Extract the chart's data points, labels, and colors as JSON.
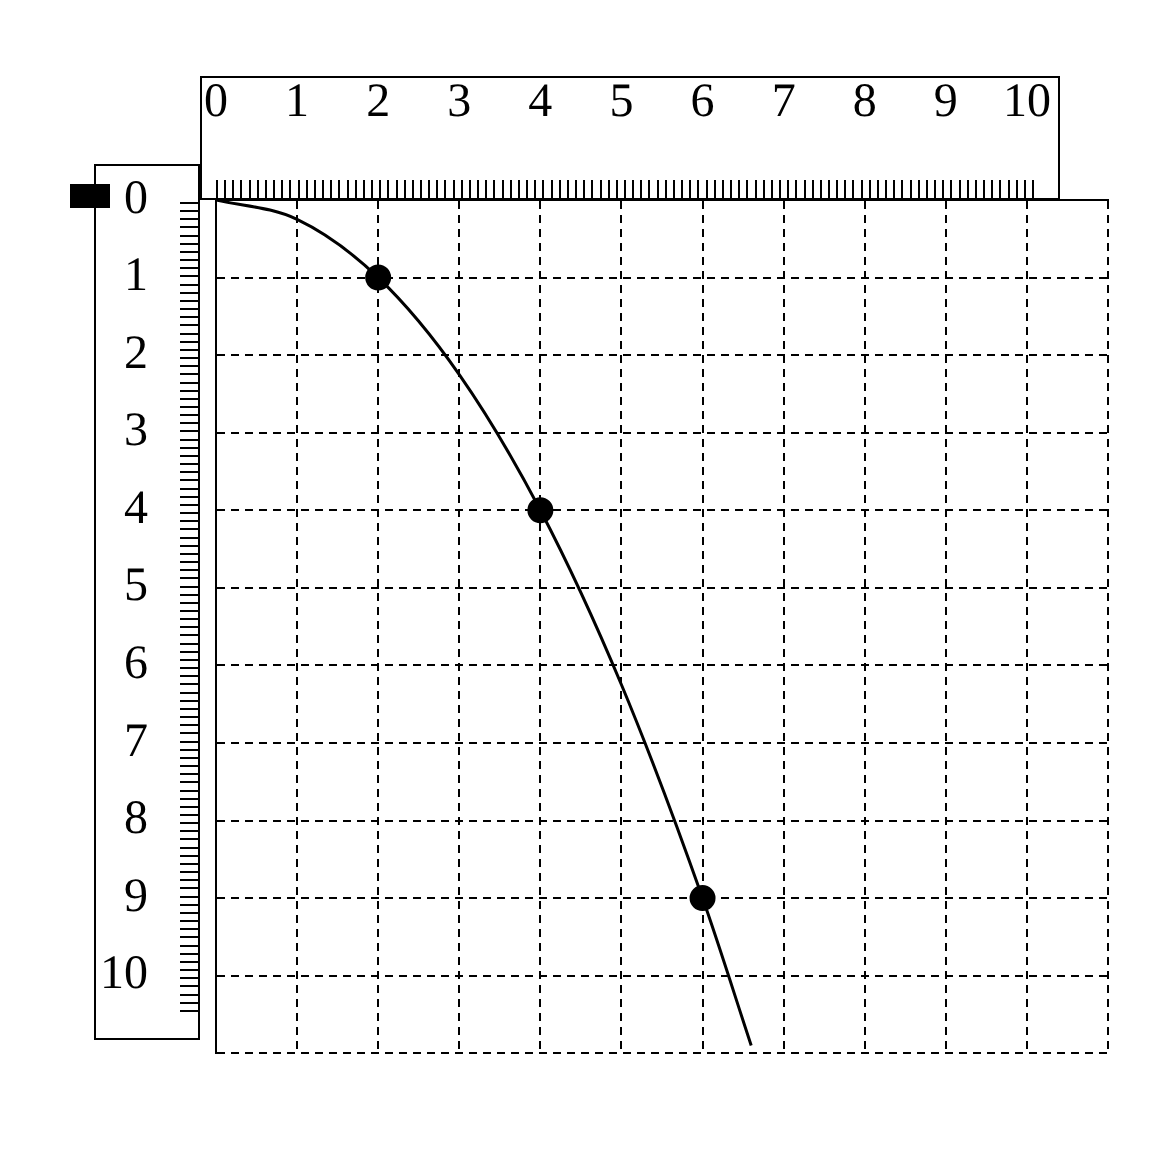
{
  "chart_data": {
    "type": "line",
    "series": [
      {
        "type": "line",
        "x": [
          0,
          1,
          2,
          3,
          4,
          5,
          6,
          6.6
        ],
        "values": [
          0,
          0.25,
          1,
          2.25,
          4,
          6.25,
          9,
          10.9
        ],
        "color": "#000000",
        "marker": "none"
      },
      {
        "type": "scatter",
        "x": [
          2,
          4,
          6
        ],
        "values": [
          1,
          4,
          9
        ],
        "color": "#000000",
        "marker": "circle"
      }
    ],
    "xlim": [
      0,
      11
    ],
    "xticks": [
      0,
      1,
      2,
      3,
      4,
      5,
      6,
      7,
      8,
      9,
      10,
      {
        "value": 11,
        "label": null
      }
    ],
    "ylim": [
      11,
      0
    ],
    "yticks": [
      0,
      1,
      2,
      3,
      4,
      5,
      6,
      7,
      8,
      9,
      10,
      {
        "value": 11,
        "label": null
      }
    ],
    "grid": true,
    "line_style": "solid"
  }
}
